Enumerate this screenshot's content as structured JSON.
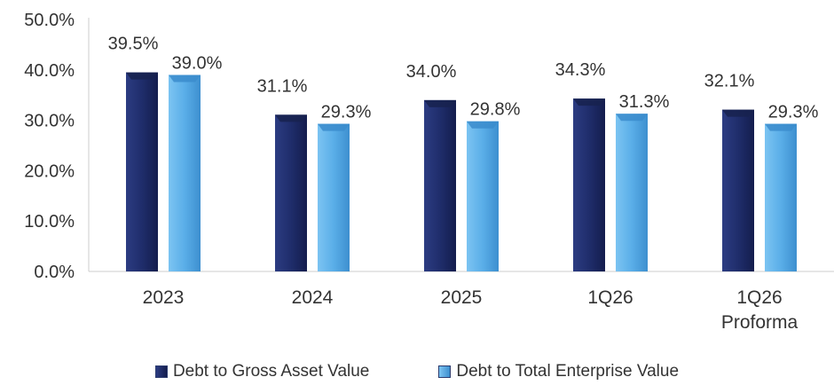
{
  "chart_data": {
    "type": "bar",
    "categories": [
      [
        "2023"
      ],
      [
        "2024"
      ],
      [
        "2025"
      ],
      [
        "1Q26"
      ],
      [
        "1Q26",
        "Proforma"
      ]
    ],
    "series": [
      {
        "name": "Debt to Gross Asset Value",
        "values": [
          39.5,
          31.1,
          34.0,
          34.3,
          32.1
        ],
        "labels": [
          "39.5%",
          "31.1%",
          "34.0%",
          "34.3%",
          "32.1%"
        ],
        "color": "#1f2d6b"
      },
      {
        "name": "Debt to Total Enterprise Value",
        "values": [
          39.0,
          29.3,
          29.8,
          31.3,
          29.3
        ],
        "labels": [
          "39.0%",
          "29.3%",
          "29.8%",
          "31.3%",
          "29.3%"
        ],
        "color": "#5aaee8"
      }
    ],
    "yticks": [
      "0.0%",
      "10.0%",
      "20.0%",
      "30.0%",
      "40.0%",
      "50.0%"
    ],
    "ylim": [
      0,
      50
    ],
    "title": "",
    "xlabel": "",
    "ylabel": "",
    "legend_position": "bottom",
    "grid": false
  }
}
